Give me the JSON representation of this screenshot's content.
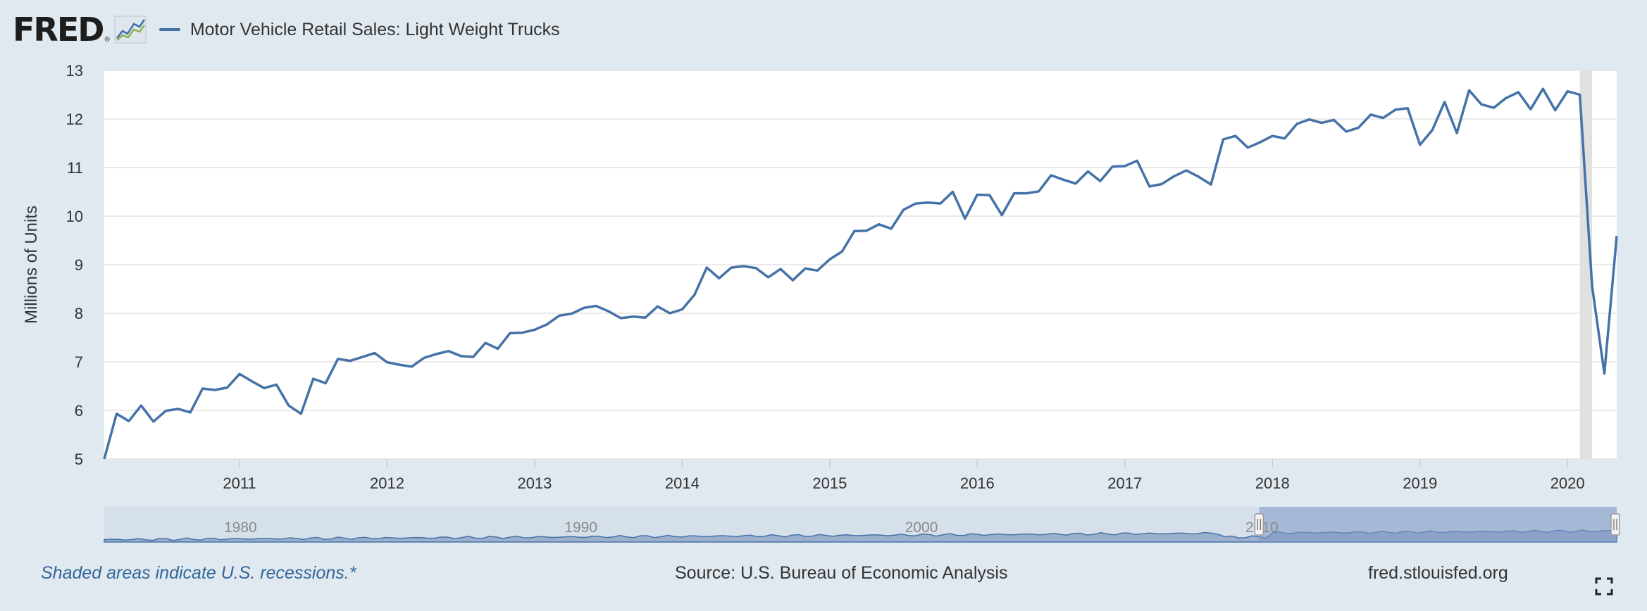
{
  "header": {
    "logo_text": "FRED",
    "logo_reg": "®",
    "logo_icon": "line-graph-icon",
    "series_title": "Motor Vehicle Retail Sales: Light Weight Trucks"
  },
  "footer": {
    "recession_note": "Shaded areas indicate U.S. recessions.*",
    "source": "Source: U.S. Bureau of Economic Analysis",
    "site": "fred.stlouisfed.org"
  },
  "colors": {
    "line": "#4572a7",
    "recession": "#e0e0e0",
    "navigator_fill": "#9bb0cc",
    "navigator_selected": "#7d99c7"
  },
  "chart_data": {
    "type": "line",
    "ylabel": "Millions of Units",
    "ylim": [
      5,
      13
    ],
    "yticks": [
      "5",
      "6",
      "7",
      "8",
      "9",
      "10",
      "11",
      "12",
      "13"
    ],
    "xticks": [
      "2011",
      "2012",
      "2013",
      "2014",
      "2015",
      "2016",
      "2017",
      "2018",
      "2019",
      "2020"
    ],
    "x_range": [
      "2010-02",
      "2020-05"
    ],
    "grid": true,
    "legend_position": "top-left",
    "recessions": [
      {
        "start": "2020-02",
        "end": "2020-03"
      }
    ],
    "series": [
      {
        "name": "Motor Vehicle Retail Sales: Light Weight Trucks",
        "x": [
          "2010-02",
          "2010-03",
          "2010-04",
          "2010-05",
          "2010-06",
          "2010-07",
          "2010-08",
          "2010-09",
          "2010-10",
          "2010-11",
          "2010-12",
          "2011-01",
          "2011-02",
          "2011-03",
          "2011-04",
          "2011-05",
          "2011-06",
          "2011-07",
          "2011-08",
          "2011-09",
          "2011-10",
          "2011-11",
          "2011-12",
          "2012-01",
          "2012-02",
          "2012-03",
          "2012-04",
          "2012-05",
          "2012-06",
          "2012-07",
          "2012-08",
          "2012-09",
          "2012-10",
          "2012-11",
          "2012-12",
          "2013-01",
          "2013-02",
          "2013-03",
          "2013-04",
          "2013-05",
          "2013-06",
          "2013-07",
          "2013-08",
          "2013-09",
          "2013-10",
          "2013-11",
          "2013-12",
          "2014-01",
          "2014-02",
          "2014-03",
          "2014-04",
          "2014-05",
          "2014-06",
          "2014-07",
          "2014-08",
          "2014-09",
          "2014-10",
          "2014-11",
          "2014-12",
          "2015-01",
          "2015-02",
          "2015-03",
          "2015-04",
          "2015-05",
          "2015-06",
          "2015-07",
          "2015-08",
          "2015-09",
          "2015-10",
          "2015-11",
          "2015-12",
          "2016-01",
          "2016-02",
          "2016-03",
          "2016-04",
          "2016-05",
          "2016-06",
          "2016-07",
          "2016-08",
          "2016-09",
          "2016-10",
          "2016-11",
          "2016-12",
          "2017-01",
          "2017-02",
          "2017-03",
          "2017-04",
          "2017-05",
          "2017-06",
          "2017-07",
          "2017-08",
          "2017-09",
          "2017-10",
          "2017-11",
          "2017-12",
          "2018-01",
          "2018-02",
          "2018-03",
          "2018-04",
          "2018-05",
          "2018-06",
          "2018-07",
          "2018-08",
          "2018-09",
          "2018-10",
          "2018-11",
          "2018-12",
          "2019-01",
          "2019-02",
          "2019-03",
          "2019-04",
          "2019-05",
          "2019-06",
          "2019-07",
          "2019-08",
          "2019-09",
          "2019-10",
          "2019-11",
          "2019-12",
          "2020-01",
          "2020-02",
          "2020-03",
          "2020-04",
          "2020-05"
        ],
        "values": [
          5.0,
          5.93,
          5.78,
          6.1,
          5.77,
          5.99,
          6.03,
          5.96,
          6.45,
          6.42,
          6.47,
          6.75,
          6.6,
          6.46,
          6.53,
          6.1,
          5.93,
          6.65,
          6.56,
          7.06,
          7.02,
          7.1,
          7.18,
          6.99,
          6.94,
          6.9,
          7.08,
          7.16,
          7.22,
          7.12,
          7.1,
          7.39,
          7.27,
          7.59,
          7.6,
          7.66,
          7.77,
          7.95,
          7.99,
          8.11,
          8.15,
          8.04,
          7.9,
          7.93,
          7.91,
          8.14,
          8.0,
          8.08,
          8.38,
          8.94,
          8.72,
          8.94,
          8.97,
          8.93,
          8.74,
          8.91,
          8.68,
          8.92,
          8.88,
          9.11,
          9.27,
          9.69,
          9.7,
          9.83,
          9.74,
          10.13,
          10.26,
          10.28,
          10.26,
          10.5,
          9.95,
          10.44,
          10.43,
          10.02,
          10.47,
          10.47,
          10.51,
          10.84,
          10.75,
          10.67,
          10.92,
          10.72,
          11.02,
          11.03,
          11.14,
          10.61,
          10.66,
          10.82,
          10.94,
          10.81,
          10.65,
          11.58,
          11.65,
          11.41,
          11.52,
          11.65,
          11.6,
          11.9,
          11.99,
          11.92,
          11.98,
          11.74,
          11.82,
          12.09,
          12.02,
          12.19,
          12.22,
          11.47,
          11.77,
          12.35,
          11.71,
          12.59,
          12.3,
          12.23,
          12.43,
          12.55,
          12.2,
          12.62,
          12.18,
          12.57,
          12.5,
          8.55,
          6.76,
          9.59
        ]
      }
    ],
    "navigator": {
      "tick_labels": [
        "1980",
        "1990",
        "2000",
        "2010"
      ],
      "range": [
        "1976",
        "2020"
      ],
      "selected": [
        "2010",
        "2020"
      ]
    }
  }
}
